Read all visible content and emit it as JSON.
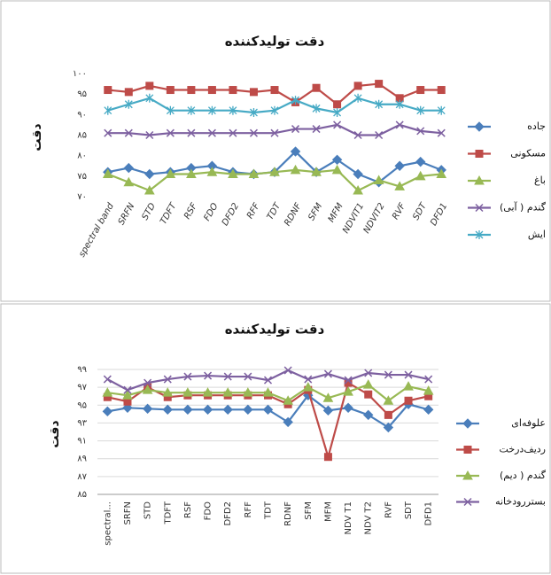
{
  "chart_data": [
    {
      "type": "line",
      "title": "دقت تولیدکننده",
      "y_label": "دقت",
      "grid": false,
      "categories": [
        "spectral band",
        "SRFN",
        "STD",
        "TDFT",
        "RSF",
        "FDO",
        "DFD2",
        "RFF",
        "TDT",
        "RDNF",
        "SFM",
        "MFM",
        "NDVIT1",
        "NDVIT2",
        "RVF",
        "SDT",
        "DFD1"
      ],
      "ylim": [
        70,
        100
      ],
      "yticks": [
        {
          "value": 70,
          "label": "۷۰"
        },
        {
          "value": 75,
          "label": "۷۵"
        },
        {
          "value": 80,
          "label": "۸۰"
        },
        {
          "value": 85,
          "label": "۸۵"
        },
        {
          "value": 90,
          "label": "۹۰"
        },
        {
          "value": 95,
          "label": "۹۵"
        },
        {
          "value": 100,
          "label": "۱۰۰"
        }
      ],
      "series": [
        {
          "name": "جاده",
          "color": "#4a7ebb",
          "marker": "diamond",
          "values": [
            76,
            77,
            75.5,
            76,
            77,
            77.5,
            76,
            75.5,
            76,
            81,
            76,
            79,
            75.5,
            73.5,
            77.5,
            78.5,
            76.5
          ]
        },
        {
          "name": "مسکونی",
          "color": "#be4b48",
          "marker": "square",
          "values": [
            96,
            95.5,
            97,
            96,
            96,
            96,
            96,
            95.5,
            96,
            93,
            96.5,
            92.5,
            97,
            97.5,
            94,
            96,
            96
          ]
        },
        {
          "name": "باغ",
          "color": "#98b954",
          "marker": "triangle",
          "values": [
            75.5,
            73.5,
            71.5,
            75.5,
            75.5,
            76,
            75.5,
            75.5,
            76,
            76.5,
            76,
            76.5,
            71.5,
            74,
            72.5,
            75,
            75.5
          ]
        },
        {
          "name": "گندم ( آبی)",
          "color": "#7d60a0",
          "marker": "x",
          "values": [
            85.5,
            85.5,
            85,
            85.5,
            85.5,
            85.5,
            85.5,
            85.5,
            85.5,
            86.5,
            86.5,
            87.5,
            85,
            85,
            87.5,
            86,
            85.5
          ]
        },
        {
          "name": "ایش",
          "color": "#46aac5",
          "marker": "star",
          "values": [
            91,
            92.5,
            94,
            91,
            91,
            91,
            91,
            90.5,
            91,
            93.5,
            91.5,
            90.5,
            94,
            92.5,
            92.5,
            91,
            91
          ]
        }
      ]
    },
    {
      "type": "line",
      "title": "دقت تولیدکننده",
      "y_label": "دقت",
      "grid": true,
      "categories": [
        "spectral...",
        "SRFN",
        "STD",
        "TDFT",
        "RSF",
        "FDO",
        "DFD2",
        "RFF",
        "TDT",
        "RDNF",
        "SFM",
        "MFM",
        "NDV T1",
        "NDV T2",
        "RVF",
        "SDT",
        "DFD1"
      ],
      "ylim": [
        85,
        99
      ],
      "yticks": [
        {
          "value": 85,
          "label": "۸۵"
        },
        {
          "value": 87,
          "label": "۸۷"
        },
        {
          "value": 89,
          "label": "۸۹"
        },
        {
          "value": 91,
          "label": "۹۱"
        },
        {
          "value": 93,
          "label": "۹۳"
        },
        {
          "value": 95,
          "label": "۹۵"
        },
        {
          "value": 97,
          "label": "۹۷"
        },
        {
          "value": 99,
          "label": "۹۹"
        }
      ],
      "series": [
        {
          "name": "علوفه‌ای",
          "color": "#4a7ebb",
          "marker": "diamond",
          "values": [
            94.3,
            94.7,
            94.6,
            94.5,
            94.5,
            94.5,
            94.5,
            94.5,
            94.5,
            93.1,
            96.1,
            94.4,
            94.7,
            93.9,
            92.5,
            95.1,
            94.5
          ]
        },
        {
          "name": "ردیف‌درخت",
          "color": "#be4b48",
          "marker": "square",
          "values": [
            95.9,
            95.4,
            97,
            95.9,
            96.1,
            96.1,
            96.1,
            96.1,
            96.1,
            95.1,
            96.7,
            89.2,
            97.5,
            96.2,
            93.9,
            95.5,
            96
          ]
        },
        {
          "name": "گندم ( دیم)",
          "color": "#98b954",
          "marker": "triangle",
          "values": [
            96.4,
            96.1,
            96.7,
            96.4,
            96.4,
            96.4,
            96.4,
            96.4,
            96.4,
            95.5,
            97,
            95.8,
            96.5,
            97.3,
            95.5,
            97.1,
            96.6
          ]
        },
        {
          "name": "بستررودخانه",
          "color": "#7d60a0",
          "marker": "x",
          "values": [
            97.9,
            96.7,
            97.5,
            97.9,
            98.2,
            98.3,
            98.2,
            98.2,
            97.8,
            98.9,
            97.9,
            98.5,
            97.8,
            98.6,
            98.4,
            98.4,
            97.9
          ]
        }
      ]
    }
  ]
}
